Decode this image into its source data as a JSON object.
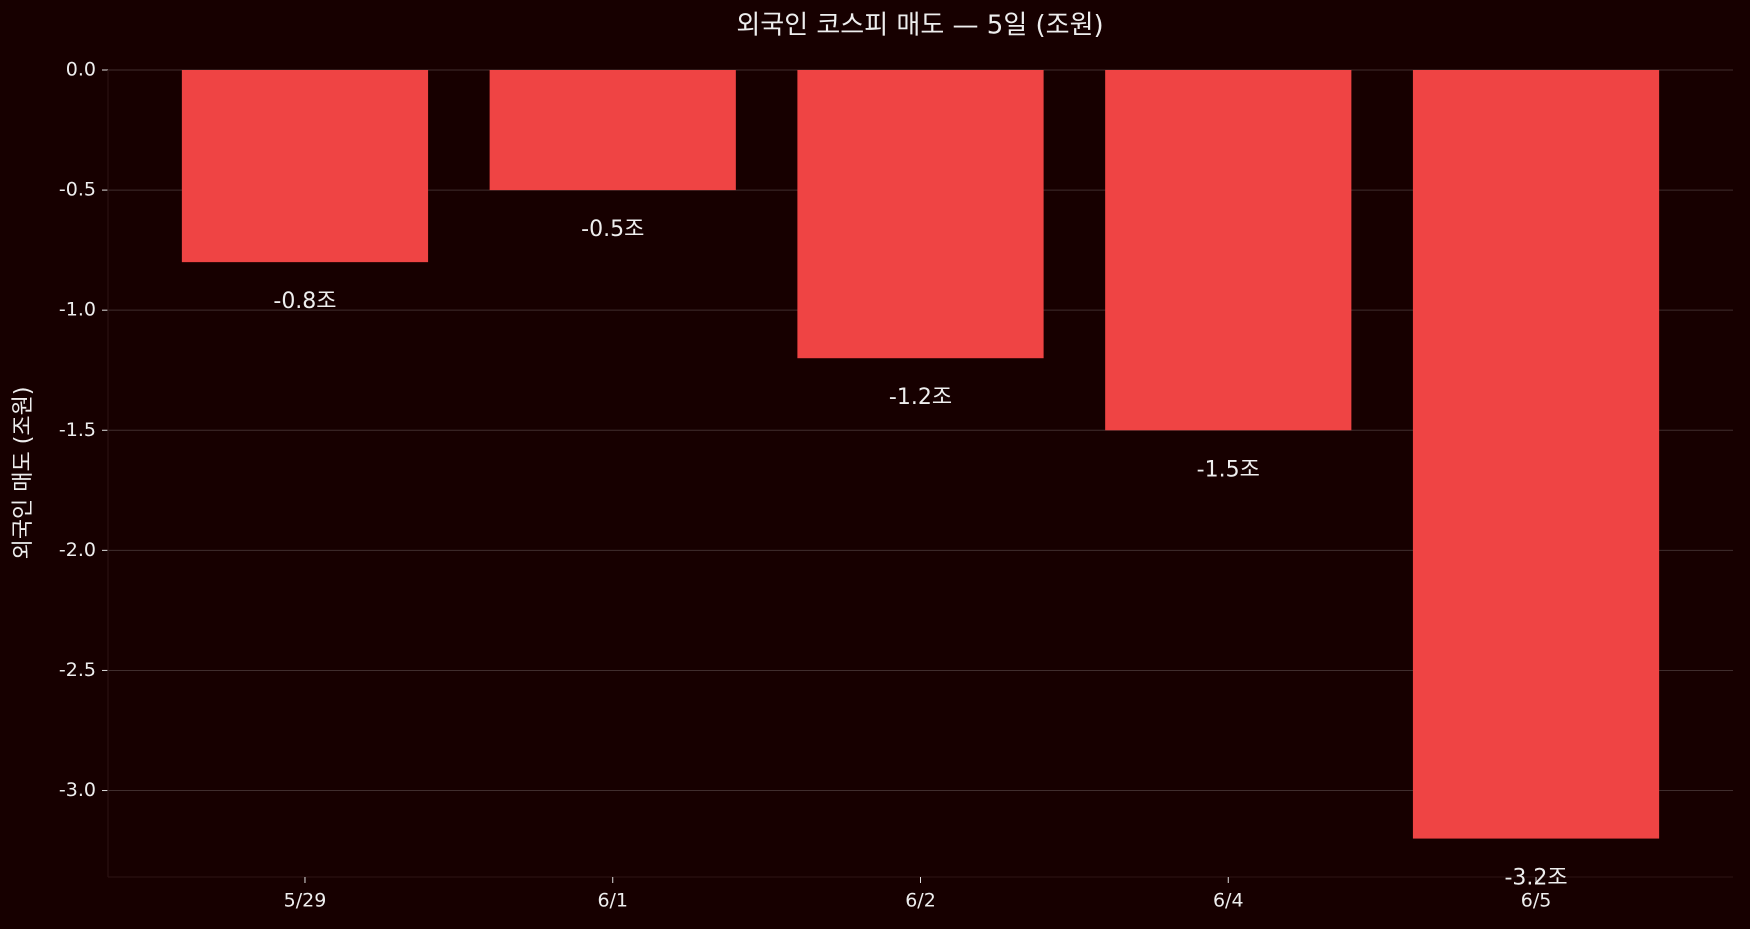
{
  "chart_data": {
    "type": "bar",
    "title": "외국인 코스피 매도 — 5일 (조원)",
    "y_label": "외국인 매도 (조원)",
    "categories": [
      "5/29",
      "6/1",
      "6/2",
      "6/4",
      "6/5"
    ],
    "values": [
      -0.8,
      -0.5,
      -1.2,
      -1.5,
      -3.2
    ],
    "value_labels": [
      "-0.8조",
      "-0.5조",
      "-1.2조",
      "-1.5조",
      "-3.2조"
    ],
    "color": "#ef4444",
    "ylim": [
      -3.36,
      0
    ],
    "yticks": [
      {
        "value": 0,
        "label": "0.0"
      },
      -0.5,
      {
        "value": -1,
        "label": "-1.0"
      },
      -1.5,
      {
        "value": -2,
        "label": "-2.0"
      },
      -2.5,
      {
        "value": -3,
        "label": "-3.0"
      }
    ],
    "grid": true
  }
}
